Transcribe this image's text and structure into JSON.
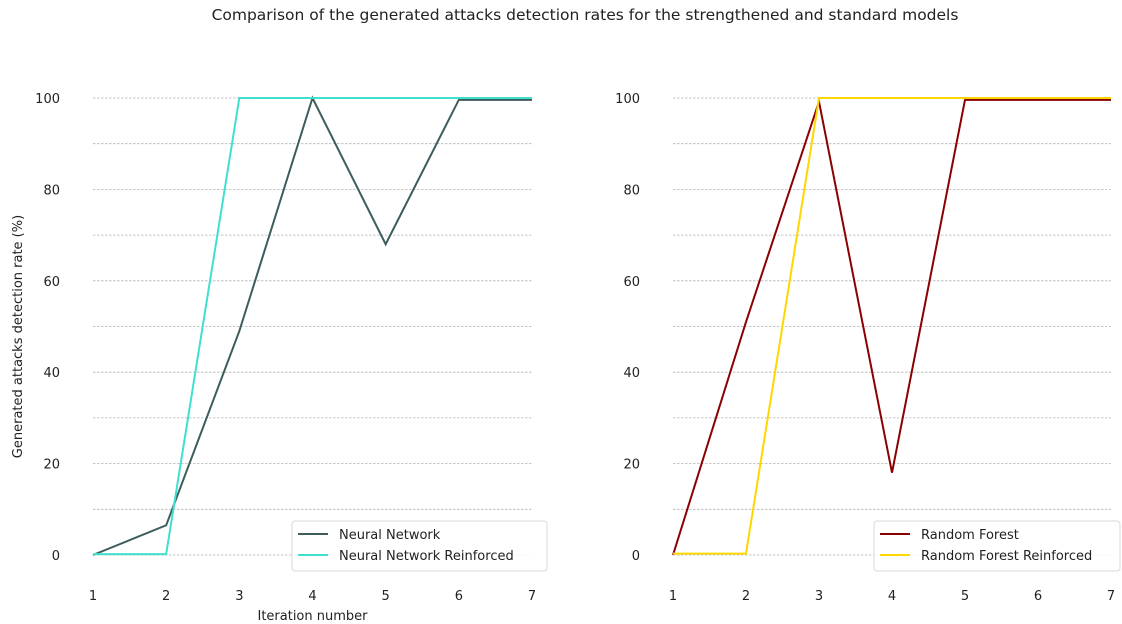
{
  "title": "Comparison of the generated attacks detection rates for the strengthened and standard models",
  "chart_data": [
    {
      "type": "line",
      "xlabel": "Iteration number",
      "ylabel": "Generated attacks detection rate (%)",
      "x": [
        1,
        2,
        3,
        4,
        5,
        6,
        7
      ],
      "xlim": [
        1,
        7
      ],
      "ylim": [
        0,
        100
      ],
      "yticks": [
        0,
        20,
        40,
        60,
        80,
        100
      ],
      "xticks": [
        1,
        2,
        3,
        4,
        5,
        6,
        7
      ],
      "grid": "horizontal dashed",
      "legend_position": "lower-right",
      "series": [
        {
          "name": "Neural Network",
          "color": "#3d5c5c",
          "values": [
            0,
            6.5,
            49,
            100,
            68,
            99.6,
            99.6
          ]
        },
        {
          "name": "Neural Network Reinforced",
          "color": "#40e0d0",
          "values": [
            0.2,
            0.2,
            100,
            100,
            100,
            100,
            100
          ]
        }
      ]
    },
    {
      "type": "line",
      "xlabel": "",
      "ylabel": "",
      "x": [
        1,
        2,
        3,
        4,
        5,
        6,
        7
      ],
      "xlim": [
        1,
        7
      ],
      "ylim": [
        0,
        100
      ],
      "yticks": [
        0,
        20,
        40,
        60,
        80,
        100
      ],
      "xticks": [
        1,
        2,
        3,
        4,
        5,
        6,
        7
      ],
      "grid": "horizontal dashed",
      "legend_position": "lower-right",
      "series": [
        {
          "name": "Random Forest",
          "color": "#8b0000",
          "values": [
            0,
            51,
            99.2,
            18,
            99.6,
            99.6,
            99.6
          ]
        },
        {
          "name": "Random Forest Reinforced",
          "color": "#ffd700",
          "values": [
            0.3,
            0.3,
            100,
            100,
            100,
            100,
            100
          ]
        }
      ]
    }
  ]
}
